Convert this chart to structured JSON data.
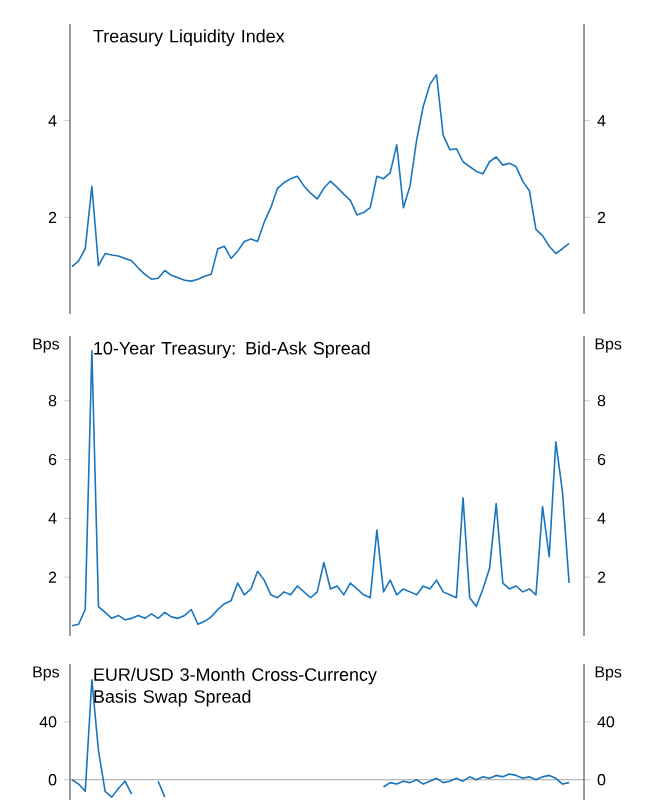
{
  "chart_data": [
    {
      "type": "line",
      "title": "Treasury Liquidity Index",
      "categories": [
        null,
        null,
        null,
        null,
        null,
        null,
        null,
        null,
        null,
        null,
        null,
        null,
        null,
        null,
        null,
        null,
        null,
        null,
        null,
        null,
        null,
        null,
        null,
        null,
        null,
        null,
        null,
        null,
        null,
        null,
        null,
        null,
        null,
        null,
        null,
        null,
        null,
        null,
        null,
        null,
        null,
        null,
        null,
        null,
        null,
        null,
        null,
        null,
        null,
        null,
        null,
        null,
        null,
        null,
        null,
        null,
        null,
        null,
        null,
        null,
        null,
        null,
        null,
        null,
        null,
        null,
        null,
        null,
        null,
        null,
        null,
        null,
        null,
        null,
        null,
        null
      ],
      "series": [
        {
          "color": "#1a75bc",
          "values": [
            0.98,
            1.1,
            1.35,
            2.64,
            1.0,
            1.25,
            1.22,
            1.2,
            1.15,
            1.1,
            0.95,
            0.82,
            0.72,
            0.74,
            0.9,
            0.8,
            0.75,
            0.7,
            0.68,
            0.72,
            0.78,
            0.82,
            1.35,
            1.4,
            1.15,
            1.3,
            1.5,
            1.55,
            1.5,
            1.9,
            2.2,
            2.6,
            2.72,
            2.8,
            2.85,
            2.65,
            2.5,
            2.38,
            2.6,
            2.75,
            2.62,
            2.48,
            2.35,
            2.05,
            2.1,
            2.2,
            2.85,
            2.8,
            2.92,
            3.5,
            2.2,
            2.65,
            3.6,
            4.3,
            4.75,
            4.95,
            3.7,
            3.4,
            3.42,
            3.15,
            3.05,
            2.95,
            2.9,
            3.15,
            3.25,
            3.08,
            3.12,
            3.05,
            2.75,
            2.55,
            1.75,
            1.62,
            1.4,
            1.25,
            1.35,
            1.46
          ]
        }
      ],
      "ylim": [
        0,
        6
      ],
      "yticks": [
        2,
        4
      ],
      "y2lim": [
        0,
        6
      ],
      "y2ticks": [
        2,
        4
      ]
    },
    {
      "type": "line",
      "title": "10-Year Treasury: Bid-Ask Spread",
      "ylabel": "Bps",
      "y2label": "Bps",
      "categories": [
        null,
        null,
        null,
        null,
        null,
        null,
        null,
        null,
        null,
        null,
        null,
        null,
        null,
        null,
        null,
        null,
        null,
        null,
        null,
        null,
        null,
        null,
        null,
        null,
        null,
        null,
        null,
        null,
        null,
        null,
        null,
        null,
        null,
        null,
        null,
        null,
        null,
        null,
        null,
        null,
        null,
        null,
        null,
        null,
        null,
        null,
        null,
        null,
        null,
        null,
        null,
        null,
        null,
        null,
        null,
        null,
        null,
        null,
        null,
        null,
        null,
        null,
        null,
        null,
        null,
        null,
        null,
        null,
        null,
        null,
        null,
        null,
        null,
        null,
        null,
        null
      ],
      "series": [
        {
          "color": "#1a75bc",
          "values": [
            0.35,
            0.4,
            0.9,
            9.7,
            1.0,
            0.8,
            0.6,
            0.7,
            0.55,
            0.6,
            0.7,
            0.6,
            0.75,
            0.6,
            0.8,
            0.65,
            0.6,
            0.7,
            0.9,
            0.4,
            0.5,
            0.65,
            0.9,
            1.1,
            1.2,
            1.8,
            1.4,
            1.6,
            2.2,
            1.9,
            1.4,
            1.3,
            1.5,
            1.4,
            1.7,
            1.5,
            1.3,
            1.5,
            2.5,
            1.6,
            1.7,
            1.4,
            1.8,
            1.6,
            1.4,
            1.3,
            3.6,
            1.5,
            1.9,
            1.4,
            1.6,
            1.5,
            1.4,
            1.7,
            1.6,
            1.9,
            1.5,
            1.4,
            1.3,
            4.7,
            1.3,
            1.0,
            1.6,
            2.3,
            4.5,
            1.8,
            1.6,
            1.7,
            1.5,
            1.6,
            1.4,
            4.4,
            2.7,
            6.6,
            4.9,
            1.8
          ]
        }
      ],
      "ylim": [
        0,
        10.2
      ],
      "yticks": [
        2,
        4,
        6,
        8
      ],
      "y2lim": [
        0,
        10.2
      ],
      "y2ticks": [
        2,
        4,
        6,
        8
      ]
    },
    {
      "type": "line",
      "title": "EUR/USD 3-Month Cross-Currency Basis Swap Spread",
      "ylabel": "Bps",
      "y2label": "Bps",
      "categories": [
        null,
        null,
        null,
        null,
        null,
        null,
        null,
        null,
        null,
        null,
        null,
        null,
        null,
        null,
        null,
        null,
        null,
        null,
        null,
        null,
        null,
        null,
        null,
        null,
        null,
        null,
        null,
        null,
        null,
        null,
        null,
        null,
        null,
        null,
        null,
        null,
        null,
        null,
        null,
        null,
        null,
        null,
        null,
        null,
        null,
        null,
        null,
        null,
        null,
        null,
        null,
        null,
        null,
        null,
        null,
        null,
        null,
        null,
        null,
        null,
        null,
        null,
        null,
        null,
        null,
        null,
        null,
        null,
        null,
        null,
        null,
        null,
        null,
        null,
        null,
        null
      ],
      "series": [
        {
          "color": "#1a75bc",
          "values": [
            0,
            -3,
            -8,
            69,
            20,
            -8,
            -12,
            -6,
            -1,
            -10,
            null,
            null,
            null,
            -1,
            -12,
            null,
            null,
            null,
            null,
            null,
            null,
            null,
            null,
            null,
            null,
            null,
            null,
            null,
            null,
            null,
            null,
            null,
            null,
            null,
            null,
            null,
            null,
            null,
            null,
            null,
            null,
            null,
            null,
            null,
            null,
            null,
            null,
            -5,
            -2,
            -3,
            -1,
            -2,
            0,
            -3,
            -1,
            1,
            -2,
            -1,
            1,
            -1,
            2,
            0,
            2,
            1,
            3,
            2,
            4,
            3,
            1,
            2,
            0,
            2,
            3,
            1,
            -3,
            -2
          ]
        }
      ],
      "ref_lines": [
        {
          "axis": "y",
          "value": 0,
          "color": "#a6a6a6"
        }
      ],
      "ylim": [
        -14,
        80
      ],
      "yticks": [
        0,
        40
      ],
      "y2lim": [
        -14,
        80
      ],
      "y2ticks": [
        0,
        40
      ]
    }
  ]
}
